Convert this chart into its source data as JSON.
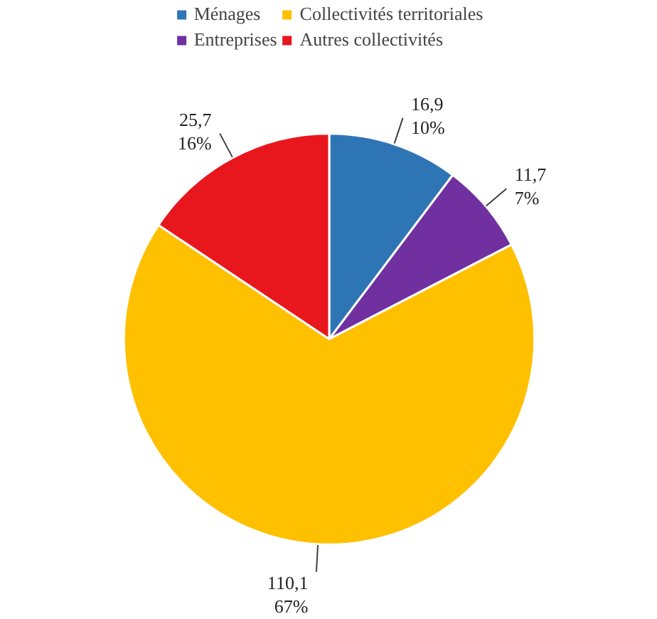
{
  "chart_data": {
    "type": "pie",
    "categories": [
      "Ménages",
      "Entreprises",
      "Collectivités territoriales",
      "Autres collectivités"
    ],
    "values": [
      16.9,
      11.7,
      110.1,
      25.7
    ],
    "colors": [
      "#2e75b6",
      "#7030a0",
      "#ffc000",
      "#e8161d"
    ],
    "value_labels": [
      "16,9\n10%",
      "11,7\n7%",
      "110,1\n67%",
      "25,7\n16%"
    ],
    "legend": "top"
  }
}
